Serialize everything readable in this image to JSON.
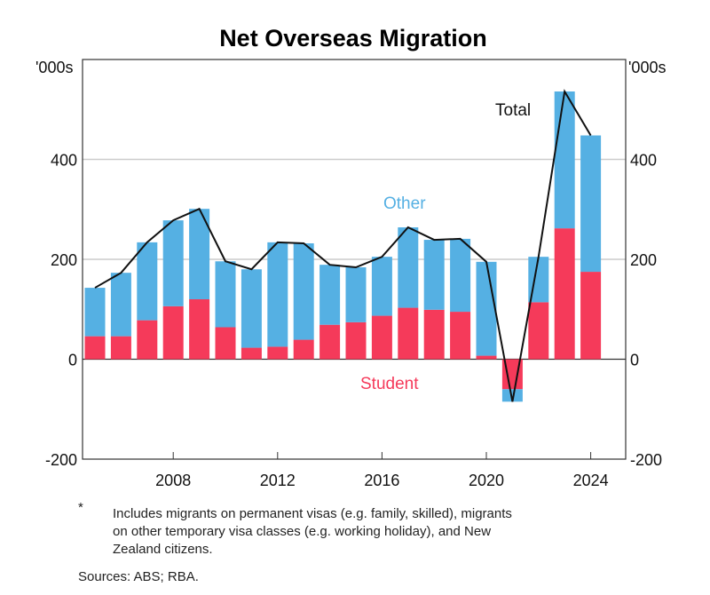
{
  "chart_data": {
    "type": "bar",
    "stacked": true,
    "title": "Net Overseas Migration",
    "y_unit_left": "'000s",
    "y_unit_right": "'000s",
    "ylim": [
      -200,
      600
    ],
    "yticks": [
      -200,
      0,
      200,
      400
    ],
    "xticks": [
      2008,
      2012,
      2016,
      2020,
      2024
    ],
    "grid": true,
    "x": [
      2005,
      2006,
      2007,
      2008,
      2009,
      2010,
      2011,
      2012,
      2013,
      2014,
      2015,
      2016,
      2017,
      2018,
      2019,
      2020,
      2021,
      2022,
      2023,
      2024
    ],
    "series": [
      {
        "name": "Student",
        "color": "#f53a5a",
        "values": [
          46,
          46,
          78,
          106,
          120,
          64,
          23,
          25,
          39,
          69,
          74,
          87,
          103,
          99,
          95,
          7,
          -60,
          114,
          262,
          175
        ]
      },
      {
        "name": "Other",
        "color": "#55b0e3",
        "values": [
          97,
          127,
          156,
          172,
          181,
          132,
          157,
          209,
          193,
          120,
          110,
          118,
          161,
          140,
          146,
          188,
          -25,
          91,
          274,
          273
        ]
      },
      {
        "name": "Total",
        "type": "line",
        "color": "#111111",
        "values": [
          143,
          173,
          234,
          278,
          301,
          196,
          180,
          234,
          232,
          189,
          184,
          205,
          264,
          239,
          241,
          195,
          -85,
          205,
          536,
          448
        ]
      }
    ]
  },
  "footnote": {
    "marker": "*",
    "text": [
      "Includes migrants on permanent visas (e.g. family, skilled), migrants",
      "on other temporary visa classes (e.g. working holiday), and New",
      "Zealand citizens."
    ]
  },
  "sources": "Sources: ABS; RBA."
}
